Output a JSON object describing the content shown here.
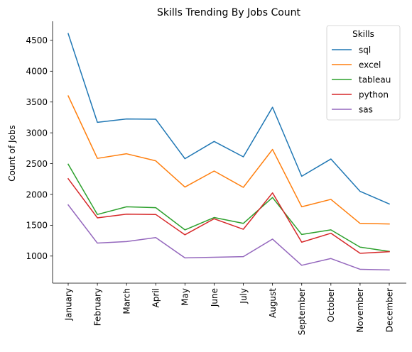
{
  "chart_data": {
    "type": "line",
    "title": "Skills Trending By Jobs Count",
    "xlabel": "",
    "ylabel": "Count of Jobs",
    "categories": [
      "January",
      "February",
      "March",
      "April",
      "May",
      "June",
      "July",
      "August",
      "September",
      "October",
      "November",
      "December"
    ],
    "yticks": [
      1000,
      1500,
      2000,
      2500,
      3000,
      3500,
      4000,
      4500
    ],
    "ylim": [
      560,
      4810
    ],
    "grid": false,
    "legend": {
      "title": "Skills",
      "placement": "top-right"
    },
    "series": [
      {
        "name": "sql",
        "color": "#1f77b4",
        "values": [
          4610,
          3170,
          3225,
          3220,
          2580,
          2860,
          2610,
          3415,
          2295,
          2575,
          2050,
          1845
        ]
      },
      {
        "name": "excel",
        "color": "#ff7f0e",
        "values": [
          3600,
          2585,
          2660,
          2545,
          2120,
          2380,
          2115,
          2730,
          1800,
          1920,
          1530,
          1520
        ]
      },
      {
        "name": "tableau",
        "color": "#2ca02c",
        "values": [
          2490,
          1675,
          1800,
          1785,
          1425,
          1625,
          1530,
          1950,
          1350,
          1425,
          1145,
          1075
        ]
      },
      {
        "name": "python",
        "color": "#d62728",
        "values": [
          2255,
          1620,
          1680,
          1675,
          1345,
          1605,
          1435,
          2025,
          1225,
          1370,
          1045,
          1070
        ]
      },
      {
        "name": "sas",
        "color": "#9467bd",
        "values": [
          1830,
          1210,
          1235,
          1300,
          970,
          980,
          990,
          1275,
          850,
          960,
          785,
          775
        ]
      }
    ]
  }
}
